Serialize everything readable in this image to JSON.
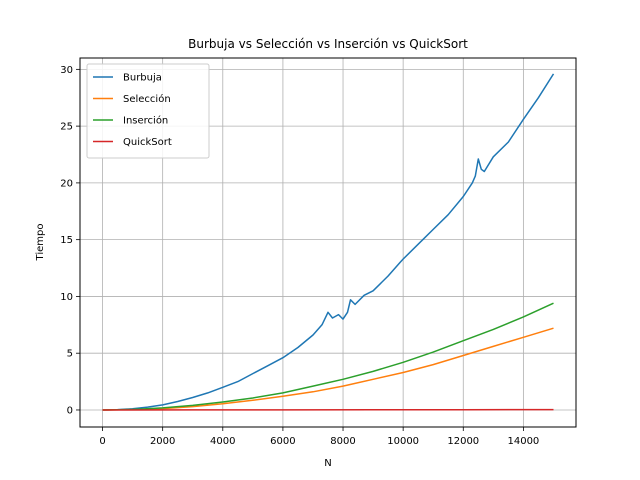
{
  "chart_data": {
    "type": "line",
    "title": "Burbuja vs Selección vs Inserción vs QuickSort",
    "xlabel": "N",
    "ylabel": "Tiempo",
    "xlim": [
      -750,
      15750
    ],
    "ylim": [
      -1.5,
      31.0
    ],
    "xticks": [
      0,
      2000,
      4000,
      6000,
      8000,
      10000,
      12000,
      14000
    ],
    "yticks": [
      0,
      5,
      10,
      15,
      20,
      25,
      30
    ],
    "grid": true,
    "legend_position": "top-left",
    "series": [
      {
        "name": "Burbuja",
        "color": "#1f77b4",
        "points": [
          [
            0,
            0
          ],
          [
            500,
            0.03
          ],
          [
            1000,
            0.1
          ],
          [
            1500,
            0.25
          ],
          [
            2000,
            0.45
          ],
          [
            2500,
            0.75
          ],
          [
            3000,
            1.1
          ],
          [
            3500,
            1.5
          ],
          [
            4000,
            2.0
          ],
          [
            4500,
            2.5
          ],
          [
            5000,
            3.2
          ],
          [
            5500,
            3.9
          ],
          [
            6000,
            4.6
          ],
          [
            6500,
            5.5
          ],
          [
            7000,
            6.6
          ],
          [
            7300,
            7.5
          ],
          [
            7500,
            8.6
          ],
          [
            7650,
            8.1
          ],
          [
            7850,
            8.4
          ],
          [
            8000,
            8.0
          ],
          [
            8150,
            8.6
          ],
          [
            8250,
            9.7
          ],
          [
            8400,
            9.3
          ],
          [
            8700,
            10.1
          ],
          [
            9000,
            10.5
          ],
          [
            9500,
            11.8
          ],
          [
            9900,
            13.0
          ],
          [
            10000,
            13.3
          ],
          [
            10500,
            14.6
          ],
          [
            11000,
            15.9
          ],
          [
            11500,
            17.2
          ],
          [
            12000,
            18.8
          ],
          [
            12300,
            20.0
          ],
          [
            12400,
            20.6
          ],
          [
            12500,
            22.1
          ],
          [
            12600,
            21.2
          ],
          [
            12700,
            21.0
          ],
          [
            13000,
            22.3
          ],
          [
            13500,
            23.6
          ],
          [
            14000,
            25.6
          ],
          [
            14500,
            27.5
          ],
          [
            15000,
            29.6
          ]
        ]
      },
      {
        "name": "Selección",
        "color": "#ff7f0e",
        "points": [
          [
            0,
            0
          ],
          [
            1000,
            0.03
          ],
          [
            2000,
            0.12
          ],
          [
            3000,
            0.3
          ],
          [
            4000,
            0.55
          ],
          [
            5000,
            0.85
          ],
          [
            6000,
            1.2
          ],
          [
            7000,
            1.6
          ],
          [
            8000,
            2.1
          ],
          [
            9000,
            2.7
          ],
          [
            10000,
            3.3
          ],
          [
            11000,
            4.0
          ],
          [
            12000,
            4.8
          ],
          [
            13000,
            5.6
          ],
          [
            14000,
            6.4
          ],
          [
            15000,
            7.2
          ]
        ]
      },
      {
        "name": "Inserción",
        "color": "#2ca02c",
        "points": [
          [
            0,
            0
          ],
          [
            1000,
            0.04
          ],
          [
            2000,
            0.18
          ],
          [
            3000,
            0.4
          ],
          [
            4000,
            0.7
          ],
          [
            5000,
            1.05
          ],
          [
            6000,
            1.5
          ],
          [
            7000,
            2.1
          ],
          [
            8000,
            2.7
          ],
          [
            9000,
            3.4
          ],
          [
            10000,
            4.2
          ],
          [
            11000,
            5.1
          ],
          [
            12000,
            6.1
          ],
          [
            13000,
            7.1
          ],
          [
            14000,
            8.2
          ],
          [
            15000,
            9.4
          ]
        ]
      },
      {
        "name": "QuickSort",
        "color": "#d62728",
        "points": [
          [
            0,
            0
          ],
          [
            3000,
            0.005
          ],
          [
            6000,
            0.01
          ],
          [
            9000,
            0.015
          ],
          [
            12000,
            0.02
          ],
          [
            15000,
            0.03
          ]
        ]
      }
    ]
  }
}
